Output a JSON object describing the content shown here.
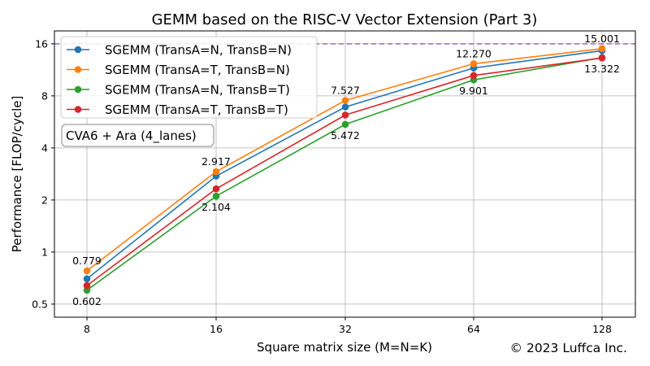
{
  "chart_data": {
    "type": "line",
    "title": "GEMM based on the RISC-V Vector Extension (Part 3)",
    "xlabel": "Square matrix size (M=N=K)",
    "ylabel": "Performance [FLOP/cycle]",
    "x": [
      8,
      16,
      32,
      64,
      128
    ],
    "x_ticks": [
      "8",
      "16",
      "32",
      "64",
      "128"
    ],
    "x_scale": "log2",
    "y_scale": "log2",
    "ylim": [
      0.42,
      19
    ],
    "y_ticks": [
      "0.5",
      "1",
      "2",
      "4",
      "8",
      "16"
    ],
    "y_tick_values": [
      0.5,
      1,
      2,
      4,
      8,
      16
    ],
    "grid": true,
    "legend_position": "top-left",
    "annotation_box": "CVA6 + Ara (4_lanes)",
    "reference_line": {
      "y": 16,
      "style": "dashed",
      "color": "#9467bd"
    },
    "copyright": "© 2023 Luffca Inc.",
    "series": [
      {
        "name": "SGEMM (TransA=N, TransB=N)",
        "color": "#1f77b4",
        "values": [
          0.7,
          2.75,
          6.9,
          11.6,
          14.6
        ]
      },
      {
        "name": "SGEMM (TransA=T, TransB=N)",
        "color": "#ff7f0e",
        "values": [
          0.779,
          2.917,
          7.527,
          12.27,
          15.001
        ]
      },
      {
        "name": "SGEMM (TransA=N, TransB=T)",
        "color": "#2ca02c",
        "values": [
          0.602,
          2.104,
          5.472,
          9.901,
          13.322
        ]
      },
      {
        "name": "SGEMM (TransA=T, TransB=T)",
        "color": "#d62728",
        "values": [
          0.64,
          2.32,
          6.2,
          10.5,
          13.25
        ]
      }
    ],
    "data_labels": [
      {
        "text": "0.779",
        "xi": 0,
        "y": 0.779,
        "pos": "above"
      },
      {
        "text": "0.602",
        "xi": 0,
        "y": 0.602,
        "pos": "below"
      },
      {
        "text": "2.917",
        "xi": 1,
        "y": 2.917,
        "pos": "above"
      },
      {
        "text": "2.104",
        "xi": 1,
        "y": 2.104,
        "pos": "below"
      },
      {
        "text": "7.527",
        "xi": 2,
        "y": 7.527,
        "pos": "above"
      },
      {
        "text": "5.472",
        "xi": 2,
        "y": 5.472,
        "pos": "below"
      },
      {
        "text": "12.270",
        "xi": 3,
        "y": 12.27,
        "pos": "above"
      },
      {
        "text": "9.901",
        "xi": 3,
        "y": 9.901,
        "pos": "below"
      },
      {
        "text": "15.001",
        "xi": 4,
        "y": 15.001,
        "pos": "above"
      },
      {
        "text": "13.322",
        "xi": 4,
        "y": 13.322,
        "pos": "below"
      }
    ]
  }
}
